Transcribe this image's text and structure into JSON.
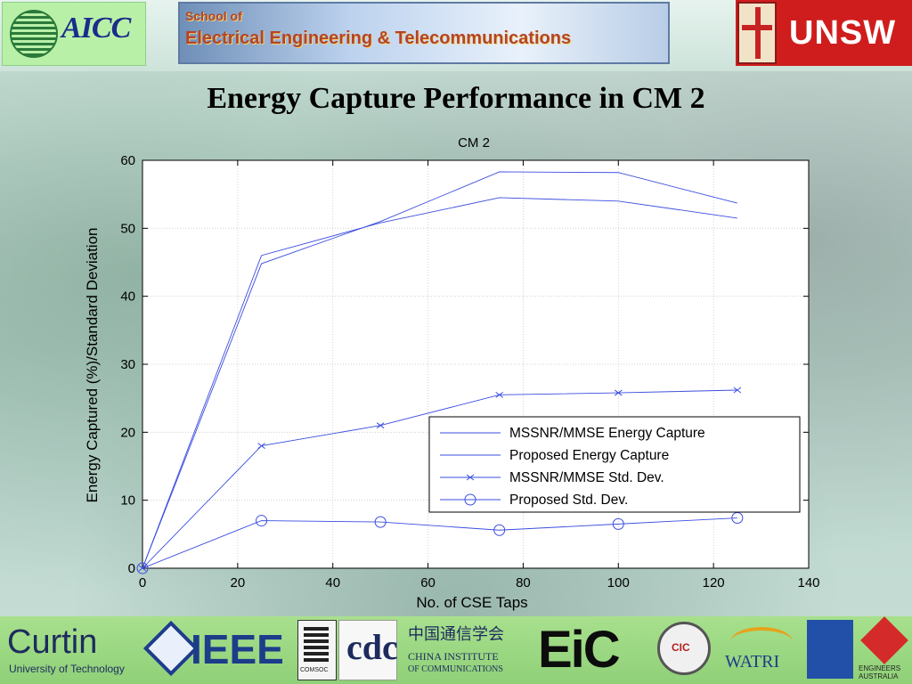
{
  "header": {
    "aicc_logo_text": "AICC",
    "school_line1": "School of",
    "school_line2": "Electrical Engineering & Telecommunications",
    "unsw_text": "UNSW"
  },
  "slide": {
    "title": "Energy Capture Performance in CM 2"
  },
  "chart_data": {
    "type": "line",
    "title": "CM 2",
    "xlabel": "No. of CSE Taps",
    "ylabel": "Energy Captured (%)/Standard Deviation",
    "xlim": [
      0,
      140
    ],
    "ylim": [
      0,
      60
    ],
    "xticks": [
      0,
      20,
      40,
      60,
      80,
      100,
      120,
      140
    ],
    "yticks": [
      0,
      10,
      20,
      30,
      40,
      50,
      60
    ],
    "grid": true,
    "legend_position": "lower-right",
    "series": [
      {
        "name": "MSSNR/MMSE Energy Capture",
        "marker": "none",
        "x": [
          0,
          25,
          50,
          75,
          100,
          125
        ],
        "y": [
          0,
          44.8,
          51.0,
          58.3,
          58.2,
          53.7
        ]
      },
      {
        "name": "Proposed Energy Capture",
        "marker": "none",
        "x": [
          0,
          25,
          50,
          75,
          100,
          125
        ],
        "y": [
          0,
          46.0,
          50.8,
          54.5,
          54.0,
          51.5
        ]
      },
      {
        "name": "MSSNR/MMSE Std. Dev.",
        "marker": "x",
        "x": [
          0,
          25,
          50,
          75,
          100,
          125
        ],
        "y": [
          0,
          18.0,
          21.0,
          25.5,
          25.8,
          26.2
        ]
      },
      {
        "name": "Proposed Std. Dev.",
        "marker": "circle",
        "x": [
          0,
          25,
          50,
          75,
          100,
          125
        ],
        "y": [
          0,
          7.0,
          6.8,
          5.6,
          6.5,
          7.4
        ]
      }
    ],
    "line_color": "#3b4de0"
  },
  "footer": {
    "curtin_name": "Curtin",
    "curtin_sub": "University of Technology",
    "ieee_text": "IEEE",
    "comsoc_text": "COMSOC",
    "cdc_text": "cdc",
    "china_cn": "中国通信学会",
    "china_en1": "CHINA INSTITUTE",
    "china_en2": "OF COMMUNICATIONS",
    "eic_text": "EiC",
    "cic_text": "CIC",
    "watri_text": "WATRI",
    "ea_text": "ENGINEERS AUSTRALIA"
  }
}
